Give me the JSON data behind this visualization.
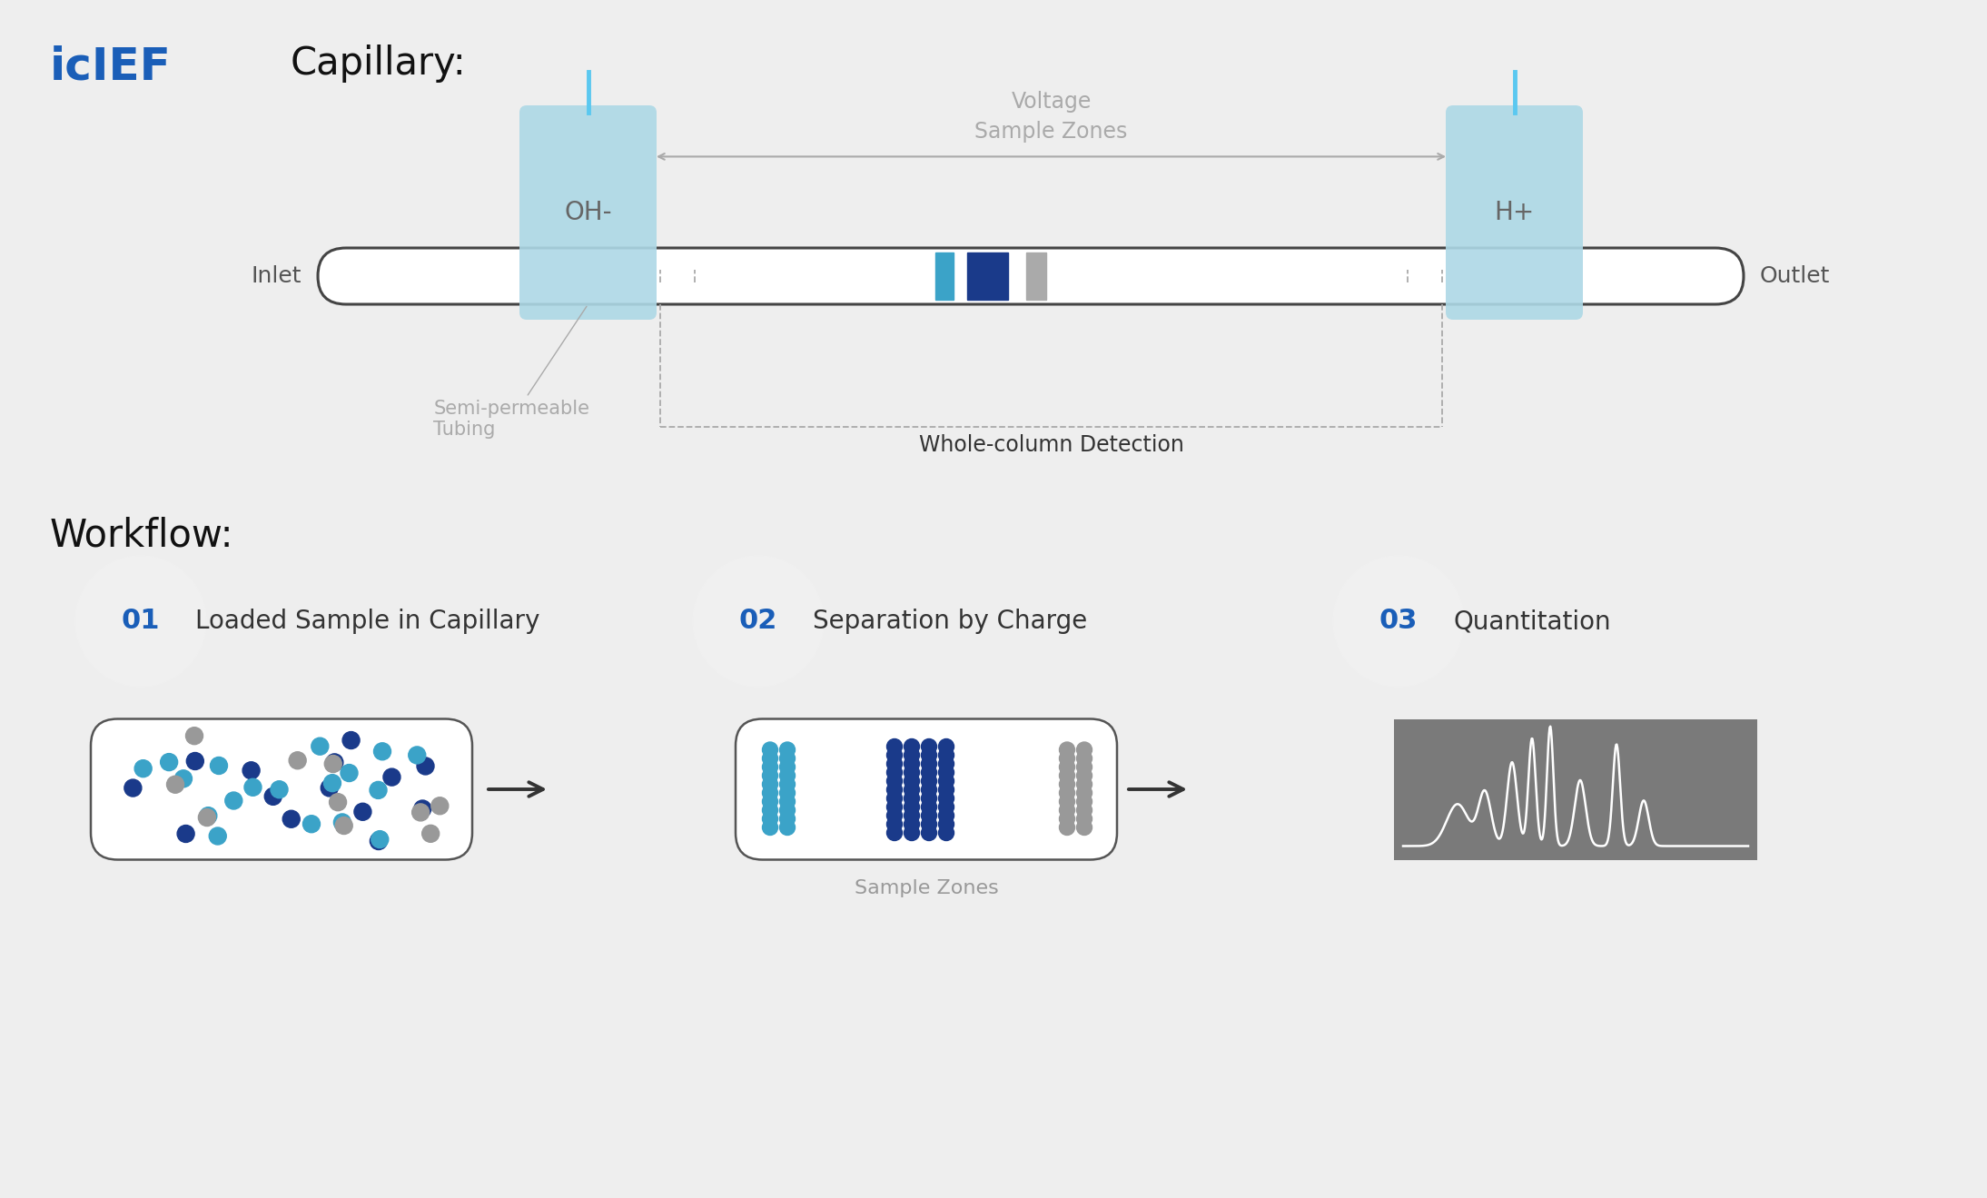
{
  "bg_color": "#eeeeee",
  "title_ief": "icIEF",
  "title_ief_color": "#1a5eb8",
  "capillary_label": "Capillary:",
  "workflow_label": "Workflow:",
  "inlet_label": "Inlet",
  "outlet_label": "Outlet",
  "oh_label": "OH-",
  "hp_label": "H+",
  "voltage_label": "Voltage\nSample Zones",
  "semi_permeable_label": "Semi-permeable\nTubing",
  "whole_col_label": "Whole-column Detection",
  "sample_zones_label": "Sample Zones",
  "step1_num": "01",
  "step1_label": "Loaded Sample in Capillary",
  "step2_num": "02",
  "step2_label": "Separation by Charge",
  "step3_num": "03",
  "step3_label": "Quantitation",
  "light_blue": "#add8e6",
  "dark_blue": "#1a3a8a",
  "cyan_blue": "#3ba3c8",
  "gray_dot": "#999999",
  "capillary_tube_color": "#ffffff",
  "capillary_border": "#444444",
  "dashed_line_color": "#aaaaaa",
  "arrow_color": "#999999",
  "step_circle_color": "#f0f0f0",
  "step_num_color": "#1a5eb8",
  "step_label_color": "#333333"
}
